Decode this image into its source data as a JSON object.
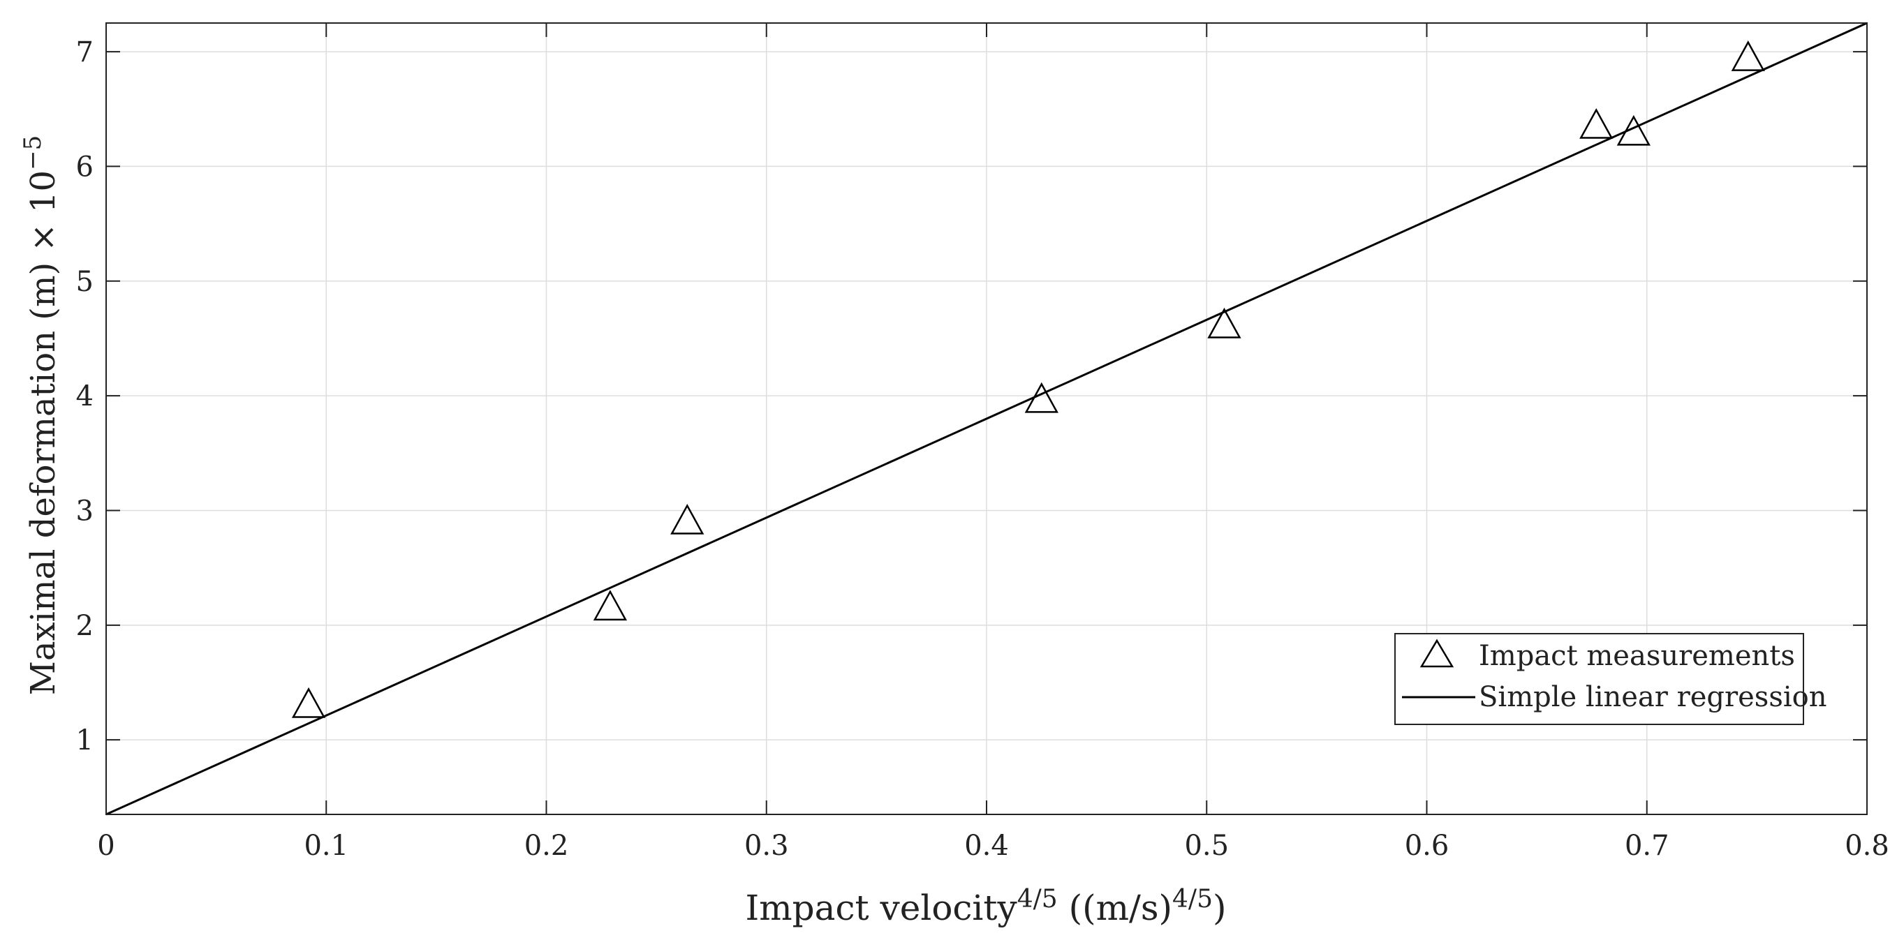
{
  "chart_data": {
    "type": "scatter",
    "xlabel": {
      "main": "Impact velocity",
      "sup": "4/5",
      "unit_open": " ((m/s)",
      "unit_sup": "4/5",
      "unit_close": ")"
    },
    "ylabel": {
      "main": "Maximal deformation (m) × 10",
      "sup": "−5"
    },
    "xlim": [
      0,
      0.8
    ],
    "ylim": [
      0.35,
      7.25
    ],
    "x_ticks": [
      0,
      0.1,
      0.2,
      0.3,
      0.4,
      0.5,
      0.6,
      0.7,
      0.8
    ],
    "x_tick_labels": [
      "0",
      "0.1",
      "0.2",
      "0.3",
      "0.4",
      "0.5",
      "0.6",
      "0.7",
      "0.8"
    ],
    "y_ticks": [
      1,
      2,
      3,
      4,
      5,
      6,
      7
    ],
    "y_tick_labels": [
      "1",
      "2",
      "3",
      "4",
      "5",
      "6",
      "7"
    ],
    "grid": true,
    "legend_position": "bottom-right",
    "series": [
      {
        "name": "Impact measurements",
        "kind": "scatter",
        "marker": "triangle",
        "x": [
          0.092,
          0.229,
          0.264,
          0.425,
          0.508,
          0.677,
          0.694,
          0.746
        ],
        "y": [
          1.29,
          2.14,
          2.89,
          3.95,
          4.6,
          6.34,
          6.28,
          6.93
        ]
      },
      {
        "name": "Simple linear regression",
        "kind": "line",
        "x": [
          0,
          0.8
        ],
        "y": [
          0.35,
          7.25
        ]
      }
    ]
  },
  "colors": {
    "line": "#000000",
    "grid": "#dddddd",
    "axis": "#222222"
  }
}
